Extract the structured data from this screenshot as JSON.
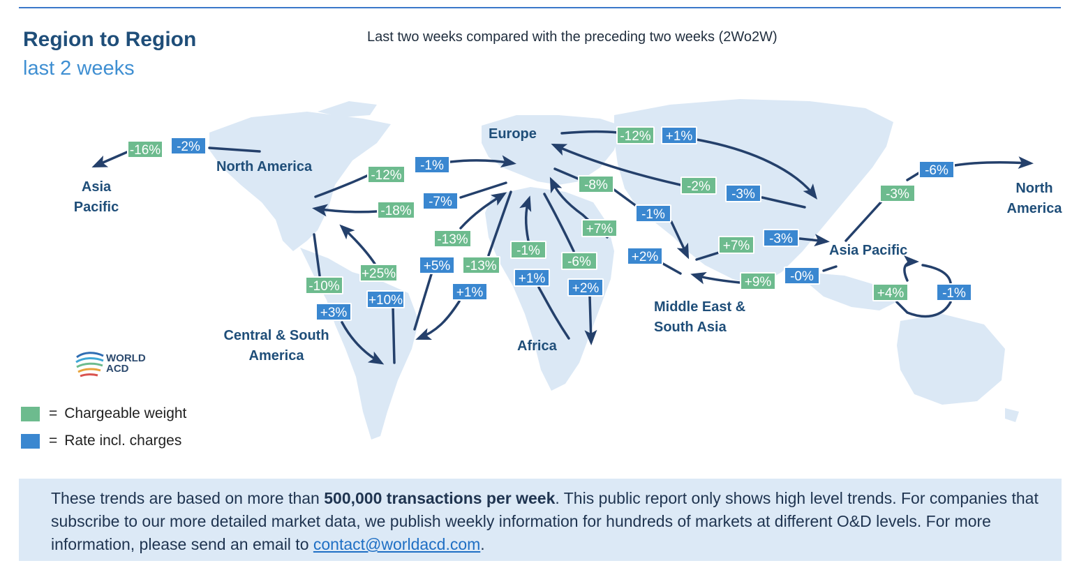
{
  "header": {
    "title": "Region to Region",
    "subtitle": "last 2 weeks",
    "comparison": "Last two weeks compared with the preceding two weeks (2Wo2W)"
  },
  "regions": {
    "asia_pacific_west": "Asia Pacific",
    "north_america": "North America",
    "europe": "Europe",
    "central_south_america": "Central & South America",
    "africa": "Africa",
    "middle_east_south_asia": "Middle East & South Asia",
    "asia_pacific": "Asia Pacific",
    "north_america_east": "North America"
  },
  "badges": {
    "na_to_ap_weight": "-16%",
    "na_to_ap_rate": "-2%",
    "na_to_eu_weight": "-12%",
    "na_to_eu_rate": "-1%",
    "eu_to_na_weight": "-18%",
    "eu_to_na_rate": "-7%",
    "eu_to_ap_weight": "-12%",
    "eu_to_ap_rate": "+1%",
    "ap_to_eu_weight": "-2%",
    "ap_to_eu_rate": "-3%",
    "eu_to_mesa_weight": "-8%",
    "eu_to_mesa_rate": "-1%",
    "mesa_to_eu_weight": "+7%",
    "mesa_to_eu_rate": "+2%",
    "mesa_to_ap_weight": "+7%",
    "mesa_to_ap_rate": "-3%",
    "ap_to_mesa_weight": "+9%",
    "ap_to_mesa_rate": "-0%",
    "ap_to_na_weight": "-3%",
    "ap_to_na_rate": "-6%",
    "intra_ap_weight": "+4%",
    "intra_ap_rate": "-1%",
    "na_to_csa_weight": "-10%",
    "na_to_csa_rate": "+3%",
    "csa_to_na_weight": "+25%",
    "csa_to_na_rate": "+10%",
    "csa_to_eu_weight": "-13%",
    "csa_to_eu_rate": "+5%",
    "eu_to_csa_weight": "-13%",
    "eu_to_csa_rate": "+1%",
    "af_to_eu_weight": "-1%",
    "af_to_eu_rate": "+1%",
    "eu_to_af_weight": "-6%",
    "eu_to_af_rate": "+2%"
  },
  "logo": {
    "line1": "WORLD",
    "line2": "ACD"
  },
  "legend": [
    {
      "color": "#6dbb8e",
      "label": "Chargeable weight"
    },
    {
      "color": "#3a87d0",
      "label": "Rate incl. charges"
    }
  ],
  "legend_eq": "=",
  "footer": {
    "part1": "These trends are based on more than ",
    "bold": "500,000 transactions per week",
    "part2": ". This public report only shows high level trends. For companies that subscribe to our more detailed market data, we publish weekly information for hundreds of markets at different O&D levels. For more information, please send an email to ",
    "email": "contact@worldacd.com",
    "part3": "."
  }
}
